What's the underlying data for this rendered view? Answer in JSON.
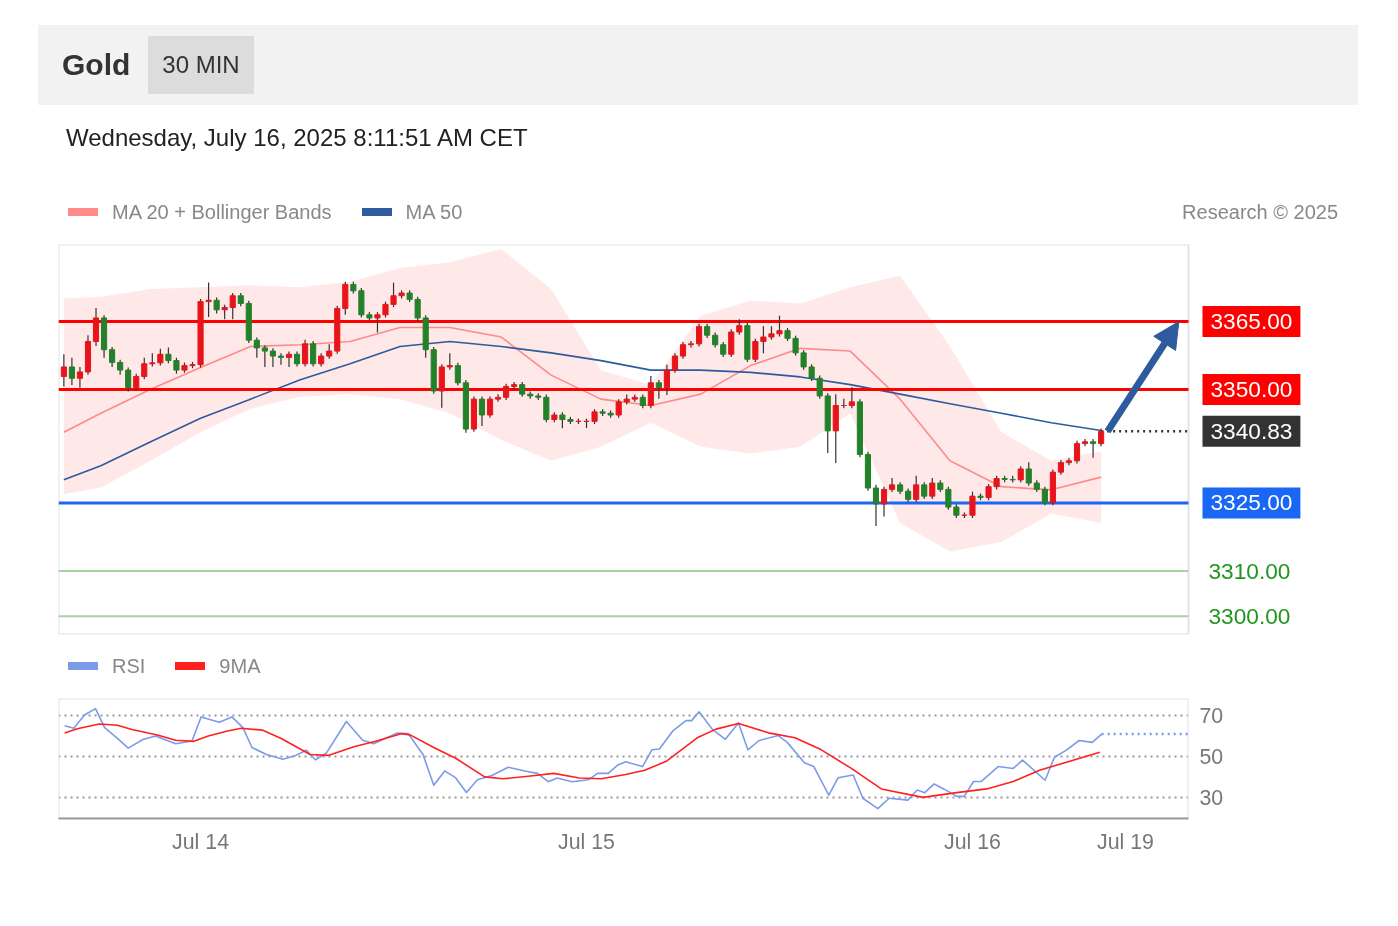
{
  "chart_data": [
    {
      "type": "candlestick",
      "title": "Gold",
      "subtitle": "30 MIN",
      "annotations": [
        "Wednesday, July 16, 2025 8:11:51 AM CET",
        "Research © 2025"
      ],
      "x": [
        "2025-07-13T15:30",
        "2025-07-13T16:00",
        "2025-07-13T16:30",
        "2025-07-13T17:00",
        "2025-07-13T17:30",
        "2025-07-13T18:00",
        "2025-07-13T18:30",
        "2025-07-13T19:00",
        "2025-07-13T19:30",
        "2025-07-13T20:00",
        "2025-07-13T20:30",
        "2025-07-13T21:00",
        "2025-07-13T21:30",
        "2025-07-13T22:00",
        "2025-07-13T22:30",
        "2025-07-13T23:00",
        "2025-07-13T23:30",
        "2025-07-14T00:00",
        "2025-07-14T00:30",
        "2025-07-14T01:00",
        "2025-07-14T01:30",
        "2025-07-14T02:00",
        "2025-07-14T02:30",
        "2025-07-14T03:00",
        "2025-07-14T03:30",
        "2025-07-14T04:00",
        "2025-07-14T04:30",
        "2025-07-14T05:00",
        "2025-07-14T05:30",
        "2025-07-14T06:00",
        "2025-07-14T06:30",
        "2025-07-14T07:00",
        "2025-07-14T07:30",
        "2025-07-14T08:00",
        "2025-07-14T08:30",
        "2025-07-14T09:00",
        "2025-07-14T09:30",
        "2025-07-14T10:00",
        "2025-07-14T10:30",
        "2025-07-14T11:00",
        "2025-07-14T11:30",
        "2025-07-14T12:00",
        "2025-07-14T12:30",
        "2025-07-14T13:00",
        "2025-07-14T13:30",
        "2025-07-14T14:00",
        "2025-07-14T14:30",
        "2025-07-14T15:00",
        "2025-07-14T15:30",
        "2025-07-14T16:00",
        "2025-07-14T16:30",
        "2025-07-14T17:00",
        "2025-07-14T17:30",
        "2025-07-14T18:00",
        "2025-07-14T18:30",
        "2025-07-14T19:00",
        "2025-07-14T19:30",
        "2025-07-14T20:00",
        "2025-07-14T20:30",
        "2025-07-14T21:00",
        "2025-07-14T21:30",
        "2025-07-14T22:00",
        "2025-07-14T22:30",
        "2025-07-14T23:00",
        "2025-07-14T23:30",
        "2025-07-15T00:00",
        "2025-07-15T00:30",
        "2025-07-15T01:00",
        "2025-07-15T01:30",
        "2025-07-15T02:00",
        "2025-07-15T02:30",
        "2025-07-15T03:00",
        "2025-07-15T03:30",
        "2025-07-15T04:00",
        "2025-07-15T04:30",
        "2025-07-15T05:00",
        "2025-07-15T05:30",
        "2025-07-15T06:00",
        "2025-07-15T06:30",
        "2025-07-15T07:00",
        "2025-07-15T07:30",
        "2025-07-15T08:00",
        "2025-07-15T08:30",
        "2025-07-15T09:00",
        "2025-07-15T09:30",
        "2025-07-15T10:00",
        "2025-07-15T10:30",
        "2025-07-15T11:00",
        "2025-07-15T11:30",
        "2025-07-15T12:00",
        "2025-07-15T12:30",
        "2025-07-15T13:00",
        "2025-07-15T13:30",
        "2025-07-15T14:00",
        "2025-07-15T14:30",
        "2025-07-15T15:00",
        "2025-07-15T15:30",
        "2025-07-15T16:00",
        "2025-07-15T16:30",
        "2025-07-15T17:00",
        "2025-07-15T17:30",
        "2025-07-15T18:00",
        "2025-07-15T18:30",
        "2025-07-15T19:00",
        "2025-07-15T19:30",
        "2025-07-15T20:00",
        "2025-07-15T20:30",
        "2025-07-15T21:00",
        "2025-07-15T21:30",
        "2025-07-15T22:00",
        "2025-07-15T22:30",
        "2025-07-15T23:00",
        "2025-07-15T23:30",
        "2025-07-16T00:00",
        "2025-07-16T00:30",
        "2025-07-16T01:00",
        "2025-07-16T01:30",
        "2025-07-16T02:00",
        "2025-07-16T02:30",
        "2025-07-16T03:00",
        "2025-07-16T03:30",
        "2025-07-16T04:00",
        "2025-07-16T04:30",
        "2025-07-16T05:00",
        "2025-07-16T05:30",
        "2025-07-16T06:00",
        "2025-07-16T06:30",
        "2025-07-16T07:00",
        "2025-07-16T07:30",
        "2025-07-16T08:00"
      ],
      "ohlc": [
        [
          3352.9,
          3357.8,
          3350.7,
          3355.0
        ],
        [
          3355.0,
          3357.0,
          3351.0,
          3352.5
        ],
        [
          3352.5,
          3355.0,
          3350.4,
          3353.9
        ],
        [
          3353.9,
          3362.0,
          3353.3,
          3360.6
        ],
        [
          3360.6,
          3368.0,
          3359.6,
          3365.8
        ],
        [
          3365.8,
          3366.4,
          3357.0,
          3358.8
        ],
        [
          3358.8,
          3359.4,
          3355.0,
          3356.0
        ],
        [
          3356.0,
          3356.6,
          3353.3,
          3354.3
        ],
        [
          3354.3,
          3354.9,
          3349.6,
          3350.4
        ],
        [
          3350.4,
          3353.5,
          3349.8,
          3352.9
        ],
        [
          3352.9,
          3357.0,
          3352.3,
          3355.7
        ],
        [
          3355.7,
          3358.0,
          3355.1,
          3355.9
        ],
        [
          3355.9,
          3359.0,
          3355.3,
          3357.8
        ],
        [
          3357.8,
          3359.3,
          3355.8,
          3356.4
        ],
        [
          3356.4,
          3357.0,
          3353.5,
          3354.3
        ],
        [
          3354.3,
          3356.0,
          3353.7,
          3355.3
        ],
        [
          3355.3,
          3356.1,
          3354.7,
          3355.5
        ],
        [
          3355.5,
          3370.0,
          3354.9,
          3369.4
        ],
        [
          3369.4,
          3373.6,
          3366.0,
          3369.7
        ],
        [
          3369.7,
          3370.3,
          3366.8,
          3367.6
        ],
        [
          3367.6,
          3368.7,
          3365.5,
          3368.1
        ],
        [
          3368.1,
          3371.3,
          3365.5,
          3370.7
        ],
        [
          3370.7,
          3371.3,
          3368.4,
          3369.0
        ],
        [
          3369.0,
          3369.6,
          3360.3,
          3360.9
        ],
        [
          3360.9,
          3361.5,
          3357.0,
          3359.2
        ],
        [
          3359.2,
          3359.8,
          3355.0,
          3358.5
        ],
        [
          3358.5,
          3359.1,
          3355.0,
          3357.4
        ],
        [
          3357.4,
          3358.0,
          3355.5,
          3357.1
        ],
        [
          3357.1,
          3358.4,
          3355.0,
          3357.8
        ],
        [
          3357.8,
          3358.4,
          3355.1,
          3355.7
        ],
        [
          3355.7,
          3361.0,
          3355.1,
          3360.1
        ],
        [
          3360.1,
          3360.7,
          3355.1,
          3355.7
        ],
        [
          3355.7,
          3358.0,
          3355.1,
          3357.4
        ],
        [
          3357.4,
          3360.0,
          3356.8,
          3358.5
        ],
        [
          3358.5,
          3368.5,
          3357.9,
          3367.9
        ],
        [
          3367.9,
          3373.8,
          3366.5,
          3373.2
        ],
        [
          3373.2,
          3373.8,
          3371.2,
          3371.8
        ],
        [
          3371.8,
          3372.4,
          3365.9,
          3366.5
        ],
        [
          3366.5,
          3367.1,
          3365.2,
          3365.8
        ],
        [
          3365.8,
          3367.1,
          3362.6,
          3366.5
        ],
        [
          3366.5,
          3369.4,
          3365.9,
          3368.8
        ],
        [
          3368.8,
          3373.6,
          3368.2,
          3370.7
        ],
        [
          3370.7,
          3371.9,
          3370.1,
          3371.3
        ],
        [
          3371.3,
          3371.9,
          3369.3,
          3369.9
        ],
        [
          3369.9,
          3370.5,
          3365.2,
          3365.8
        ],
        [
          3365.8,
          3366.4,
          3357.0,
          3358.8
        ],
        [
          3358.8,
          3359.4,
          3349.1,
          3349.7
        ],
        [
          3349.7,
          3355.6,
          3346.0,
          3355.0
        ],
        [
          3355.0,
          3358.0,
          3354.4,
          3355.3
        ],
        [
          3355.3,
          3355.9,
          3350.9,
          3351.5
        ],
        [
          3351.5,
          3352.1,
          3340.5,
          3341.3
        ],
        [
          3341.3,
          3348.5,
          3340.7,
          3347.9
        ],
        [
          3347.9,
          3348.5,
          3342.0,
          3344.4
        ],
        [
          3344.4,
          3348.5,
          3343.8,
          3347.9
        ],
        [
          3347.9,
          3349.0,
          3347.3,
          3348.3
        ],
        [
          3348.3,
          3351.3,
          3347.7,
          3350.7
        ],
        [
          3350.7,
          3351.7,
          3350.1,
          3351.1
        ],
        [
          3351.1,
          3351.7,
          3348.4,
          3349.0
        ],
        [
          3349.0,
          3349.6,
          3348.0,
          3348.6
        ],
        [
          3348.6,
          3349.2,
          3347.7,
          3348.3
        ],
        [
          3348.3,
          3348.9,
          3342.8,
          3343.4
        ],
        [
          3343.4,
          3345.0,
          3342.8,
          3344.4
        ],
        [
          3344.4,
          3345.0,
          3341.5,
          3343.4
        ],
        [
          3343.4,
          3344.0,
          3342.4,
          3343.0
        ],
        [
          3343.0,
          3343.6,
          3342.4,
          3343.0
        ],
        [
          3343.0,
          3343.6,
          3341.5,
          3343.0
        ],
        [
          3343.0,
          3345.7,
          3342.4,
          3345.1
        ],
        [
          3345.1,
          3345.7,
          3344.2,
          3344.8
        ],
        [
          3344.8,
          3345.4,
          3343.8,
          3344.4
        ],
        [
          3344.4,
          3347.9,
          3343.8,
          3347.3
        ],
        [
          3347.3,
          3348.9,
          3346.7,
          3347.9
        ],
        [
          3347.9,
          3348.9,
          3347.3,
          3348.3
        ],
        [
          3348.3,
          3348.9,
          3345.9,
          3346.5
        ],
        [
          3346.5,
          3353.0,
          3345.9,
          3351.5
        ],
        [
          3351.5,
          3352.1,
          3348.0,
          3350.4
        ],
        [
          3350.4,
          3355.5,
          3348.8,
          3354.3
        ],
        [
          3354.3,
          3358.0,
          3353.7,
          3357.4
        ],
        [
          3357.4,
          3360.5,
          3356.8,
          3359.9
        ],
        [
          3359.9,
          3360.7,
          3359.3,
          3360.1
        ],
        [
          3360.1,
          3364.5,
          3359.5,
          3363.9
        ],
        [
          3363.9,
          3364.5,
          3361.4,
          3362.0
        ],
        [
          3362.0,
          3362.6,
          3359.3,
          3359.9
        ],
        [
          3359.9,
          3360.5,
          3357.2,
          3357.8
        ],
        [
          3357.8,
          3363.3,
          3357.2,
          3362.7
        ],
        [
          3362.7,
          3365.5,
          3362.1,
          3364.1
        ],
        [
          3364.1,
          3364.7,
          3356.1,
          3356.7
        ],
        [
          3356.7,
          3361.2,
          3356.1,
          3360.6
        ],
        [
          3360.6,
          3364.0,
          3358.0,
          3361.6
        ],
        [
          3361.6,
          3364.0,
          3361.0,
          3362.3
        ],
        [
          3362.3,
          3366.3,
          3361.7,
          3363.0
        ],
        [
          3363.0,
          3363.6,
          3360.7,
          3361.3
        ],
        [
          3361.3,
          3361.9,
          3357.5,
          3358.1
        ],
        [
          3358.1,
          3358.7,
          3354.4,
          3355.0
        ],
        [
          3355.0,
          3355.6,
          3351.9,
          3352.5
        ],
        [
          3352.5,
          3353.1,
          3348.0,
          3348.6
        ],
        [
          3348.6,
          3349.2,
          3336.0,
          3340.9
        ],
        [
          3340.9,
          3349.0,
          3333.8,
          3346.5
        ],
        [
          3346.5,
          3348.0,
          3345.9,
          3346.5
        ],
        [
          3346.5,
          3350.5,
          3345.9,
          3347.3
        ],
        [
          3347.3,
          3347.9,
          3335.1,
          3335.7
        ],
        [
          3335.7,
          3336.3,
          3327.7,
          3328.3
        ],
        [
          3328.3,
          3329.0,
          3319.9,
          3324.8
        ],
        [
          3324.8,
          3328.6,
          3322.0,
          3328.0
        ],
        [
          3328.0,
          3330.5,
          3327.4,
          3329.0
        ],
        [
          3329.0,
          3329.6,
          3327.0,
          3327.6
        ],
        [
          3327.6,
          3328.2,
          3325.2,
          3325.8
        ],
        [
          3325.8,
          3331.0,
          3325.2,
          3329.0
        ],
        [
          3329.0,
          3329.6,
          3325.9,
          3326.5
        ],
        [
          3326.5,
          3330.5,
          3325.9,
          3329.4
        ],
        [
          3329.4,
          3330.0,
          3327.4,
          3328.0
        ],
        [
          3328.0,
          3328.6,
          3323.5,
          3324.1
        ],
        [
          3324.1,
          3324.7,
          3321.7,
          3322.3
        ],
        [
          3322.3,
          3322.9,
          3321.7,
          3322.3
        ],
        [
          3322.3,
          3327.5,
          3321.7,
          3326.5
        ],
        [
          3326.5,
          3327.1,
          3325.6,
          3326.2
        ],
        [
          3326.2,
          3329.2,
          3325.6,
          3328.6
        ],
        [
          3328.6,
          3331.0,
          3328.0,
          3330.4
        ],
        [
          3330.4,
          3331.0,
          3329.6,
          3330.2
        ],
        [
          3330.2,
          3331.0,
          3329.5,
          3330.1
        ],
        [
          3330.1,
          3333.1,
          3329.5,
          3332.5
        ],
        [
          3332.5,
          3334.0,
          3328.8,
          3329.4
        ],
        [
          3329.4,
          3330.0,
          3327.4,
          3328.0
        ],
        [
          3328.0,
          3328.6,
          3324.5,
          3325.1
        ],
        [
          3325.1,
          3332.4,
          3324.5,
          3331.8
        ],
        [
          3331.8,
          3334.5,
          3331.2,
          3333.9
        ],
        [
          3333.9,
          3334.9,
          3333.3,
          3334.3
        ],
        [
          3334.3,
          3338.7,
          3333.7,
          3338.1
        ],
        [
          3338.1,
          3339.1,
          3337.5,
          3338.5
        ],
        [
          3338.5,
          3339.1,
          3335.0,
          3338.1
        ],
        [
          3338.1,
          3341.4,
          3337.5,
          3340.8
        ]
      ],
      "series": [
        {
          "name": "MA 20 + Bollinger Bands",
          "type": "line",
          "color": "#ff8a8a",
          "x": [
            "2025-07-13T15:30",
            "2025-07-13T17:48",
            "2025-07-13T20:54",
            "2025-07-14T00:00",
            "2025-07-14T03:06",
            "2025-07-14T06:12",
            "2025-07-14T09:18",
            "2025-07-14T12:24",
            "2025-07-14T15:30",
            "2025-07-14T18:42",
            "2025-07-14T21:48",
            "2025-07-15T00:54",
            "2025-07-15T04:00",
            "2025-07-15T07:06",
            "2025-07-15T10:12",
            "2025-07-15T13:18",
            "2025-07-15T16:24",
            "2025-07-15T19:30",
            "2025-07-15T22:36",
            "2025-07-16T01:48",
            "2025-07-16T04:54",
            "2025-07-16T08:00"
          ],
          "values": [
            3340.6,
            3344.8,
            3350.1,
            3354.9,
            3359.5,
            3359.9,
            3360.6,
            3363.7,
            3363.7,
            3361.6,
            3353.2,
            3347.9,
            3346.5,
            3349.0,
            3355.3,
            3359.1,
            3358.5,
            3347.9,
            3334.3,
            3328.6,
            3327.9,
            3330.7
          ],
          "upper": [
            3370.1,
            3370.5,
            3372.2,
            3372.6,
            3373.0,
            3372.6,
            3373.8,
            3376.8,
            3378.1,
            3381.0,
            3372.2,
            3354.2,
            3351.1,
            3366.3,
            3369.6,
            3369.0,
            3372.6,
            3375.1,
            3359.5,
            3340.6,
            3334.3,
            3336.4
          ],
          "lower": [
            3326.9,
            3328.4,
            3334.3,
            3340.6,
            3345.8,
            3348.4,
            3349.0,
            3347.9,
            3344.8,
            3338.9,
            3334.3,
            3337.4,
            3342.7,
            3337.4,
            3335.9,
            3337.4,
            3344.8,
            3320.6,
            3314.3,
            3316.4,
            3322.7,
            3320.6
          ]
        },
        {
          "name": "MA 50",
          "type": "line",
          "color": "#2d5b9e",
          "x": [
            "2025-07-13T15:30",
            "2025-07-13T17:48",
            "2025-07-13T20:54",
            "2025-07-14T00:00",
            "2025-07-14T03:06",
            "2025-07-14T06:12",
            "2025-07-14T09:18",
            "2025-07-14T12:24",
            "2025-07-14T15:30",
            "2025-07-14T18:42",
            "2025-07-14T21:48",
            "2025-07-15T00:54",
            "2025-07-15T04:00",
            "2025-07-15T07:06",
            "2025-07-15T10:12",
            "2025-07-15T13:18",
            "2025-07-15T16:24",
            "2025-07-15T19:30",
            "2025-07-15T22:36",
            "2025-07-16T01:48",
            "2025-07-16T04:54",
            "2025-07-16T08:00"
          ],
          "values": [
            3330.1,
            3333.2,
            3338.5,
            3343.7,
            3347.9,
            3352.2,
            3355.7,
            3359.5,
            3360.6,
            3359.5,
            3358.1,
            3356.4,
            3354.3,
            3354.3,
            3353.8,
            3352.8,
            3351.1,
            3349.0,
            3346.9,
            3344.8,
            3342.7,
            3341.0
          ]
        },
        {
          "type": "line",
          "color": "#333333",
          "line_style": "dotted",
          "x": [
            "2025-07-16T08:00",
            "2025-07-16T13:26"
          ],
          "values": [
            3340.83,
            3340.83
          ]
        }
      ],
      "xlim": [
        "2025-07-13T15:10",
        "2025-07-16T13:26"
      ],
      "ylim": [
        3296,
        3382
      ],
      "tick_labels": "y",
      "legend": "top left",
      "yticks": [
        {
          "value": 3365,
          "label": "3365.00"
        },
        {
          "value": 3350,
          "label": "3350.00"
        },
        {
          "value": 3340.83,
          "label": "3340.83"
        },
        {
          "value": 3325,
          "label": "3325.00"
        },
        {
          "value": 3310,
          "label": "3310.00"
        },
        {
          "value": 3300,
          "label": "3300.00"
        }
      ],
      "ref_lines": [
        {
          "axis": "y",
          "value": 3365,
          "color": "#ff0000"
        },
        {
          "axis": "y",
          "value": 3350,
          "color": "#ff0000"
        },
        {
          "axis": "y",
          "value": 3325,
          "color": "#1a66f5"
        },
        {
          "axis": "y",
          "value": 3310,
          "color": "#a4d59e"
        },
        {
          "axis": "y",
          "value": 3300,
          "color": "#a4d59e"
        }
      ]
    },
    {
      "type": "line",
      "xlim": [
        "2025-07-13T15:10",
        "2025-07-16T13:26"
      ],
      "ylim": [
        20,
        78
      ],
      "yticks": [
        30,
        50,
        70
      ],
      "xticks": [
        {
          "value": "2025-07-14",
          "label": "Jul 14"
        },
        {
          "value": "2025-07-15",
          "label": "Jul 15"
        },
        {
          "value": "2025-07-16",
          "label": "Jul 16"
        }
      ],
      "annotations": [
        "Jul 19"
      ],
      "grid": "y",
      "legend": "top left",
      "series": [
        {
          "name": "RSI",
          "color": "#7b9be8",
          "x": [
            "2025-07-13T15:33",
            "2025-07-13T16:07",
            "2025-07-13T16:47",
            "2025-07-13T17:28",
            "2025-07-13T18:02",
            "2025-07-13T18:50",
            "2025-07-13T19:30",
            "2025-07-13T20:25",
            "2025-07-13T21:12",
            "2025-07-13T22:27",
            "2025-07-13T23:28",
            "2025-07-14T00:02",
            "2025-07-14T01:10",
            "2025-07-14T01:57",
            "2025-07-14T02:38",
            "2025-07-14T03:12",
            "2025-07-14T04:06",
            "2025-07-14T05:07",
            "2025-07-14T05:55",
            "2025-07-14T06:35",
            "2025-07-14T07:09",
            "2025-07-14T07:50",
            "2025-07-14T09:04",
            "2025-07-14T10:05",
            "2025-07-14T10:46",
            "2025-07-14T12:14",
            "2025-07-14T12:55",
            "2025-07-14T13:50",
            "2025-07-14T14:30",
            "2025-07-14T15:11",
            "2025-07-14T15:52",
            "2025-07-14T16:32",
            "2025-07-14T17:13",
            "2025-07-14T18:07",
            "2025-07-14T19:08",
            "2025-07-14T20:10",
            "2025-07-14T20:57",
            "2025-07-14T21:37",
            "2025-07-14T22:11",
            "2025-07-14T23:06",
            "2025-07-15T00:07",
            "2025-07-15T00:41",
            "2025-07-15T01:21",
            "2025-07-15T01:55",
            "2025-07-15T02:26",
            "2025-07-15T03:29",
            "2025-07-15T04:04",
            "2025-07-15T04:32",
            "2025-07-15T05:22",
            "2025-07-15T06:11",
            "2025-07-15T06:32",
            "2025-07-15T07:00",
            "2025-07-15T07:49",
            "2025-07-15T08:38",
            "2025-07-15T09:27",
            "2025-07-15T10:02",
            "2025-07-15T10:44",
            "2025-07-15T11:55",
            "2025-07-15T12:29",
            "2025-07-15T13:33",
            "2025-07-15T14:08",
            "2025-07-15T15:04",
            "2025-07-15T15:39",
            "2025-07-15T16:35",
            "2025-07-15T17:11",
            "2025-07-15T18:07",
            "2025-07-15T18:49",
            "2025-07-15T19:59",
            "2025-07-15T20:34",
            "2025-07-15T21:02",
            "2025-07-15T21:37",
            "2025-07-15T22:13",
            "2025-07-15T23:01",
            "2025-07-15T23:29",
            "2025-07-16T00:04",
            "2025-07-16T00:33",
            "2025-07-16T01:36",
            "2025-07-16T02:32",
            "2025-07-16T03:07",
            "2025-07-16T04:31",
            "2025-07-16T05:06",
            "2025-07-16T05:49",
            "2025-07-16T06:38",
            "2025-07-16T07:27",
            "2025-07-16T08:02"
          ],
          "values": [
            64.8,
            63.6,
            70.0,
            73.1,
            63.9,
            58.7,
            54.0,
            58.2,
            59.9,
            56.1,
            57.5,
            69.1,
            66.5,
            69.1,
            63.9,
            54.3,
            50.9,
            48.6,
            50.5,
            53.0,
            48.3,
            51.7,
            66.9,
            57.8,
            56.1,
            61.3,
            61.0,
            50.9,
            36.1,
            43.0,
            39.6,
            32.6,
            38.7,
            40.8,
            44.8,
            43.0,
            41.8,
            37.8,
            39.6,
            37.8,
            38.7,
            41.8,
            41.8,
            45.7,
            47.4,
            45.1,
            53.2,
            53.6,
            62.3,
            67.3,
            67.3,
            71.6,
            63.2,
            58.3,
            66.2,
            53.2,
            57.7,
            60.1,
            56.8,
            46.9,
            45.1,
            31.3,
            39.7,
            41.0,
            29.8,
            24.8,
            29.8,
            28.9,
            33.8,
            32.5,
            36.7,
            34.3,
            30.7,
            30.7,
            37.9,
            37.9,
            45.1,
            44.2,
            48.2,
            38.5,
            49.6,
            52.9,
            57.7,
            56.8,
            60.8
          ]
        },
        {
          "name": "9MA",
          "color": "#ff2020",
          "x": [
            "2025-07-13T15:33",
            "2025-07-13T16:20",
            "2025-07-13T17:42",
            "2025-07-13T18:50",
            "2025-07-13T19:44",
            "2025-07-13T21:19",
            "2025-07-13T22:27",
            "2025-07-13T23:35",
            "2025-07-14T00:29",
            "2025-07-14T01:37",
            "2025-07-14T02:31",
            "2025-07-14T03:52",
            "2025-07-14T05:01",
            "2025-07-14T06:49",
            "2025-07-14T07:56",
            "2025-07-14T09:32",
            "2025-07-14T10:53",
            "2025-07-14T12:28",
            "2025-07-14T13:02",
            "2025-07-14T14:30",
            "2025-07-14T15:52",
            "2025-07-14T17:40",
            "2025-07-14T18:48",
            "2025-07-14T20:23",
            "2025-07-14T21:58",
            "2025-07-14T23:33",
            "2025-07-15T00:55",
            "2025-07-15T02:26",
            "2025-07-15T03:37",
            "2025-07-15T05:00",
            "2025-07-15T06:53",
            "2025-07-15T08:03",
            "2025-07-15T09:27",
            "2025-07-15T11:19",
            "2025-07-15T12:58",
            "2025-07-15T14:36",
            "2025-07-15T16:28",
            "2025-07-15T18:20",
            "2025-07-15T20:55",
            "2025-07-15T23:01",
            "2025-07-16T00:53",
            "2025-07-16T02:32",
            "2025-07-16T04:10",
            "2025-07-16T07:55"
          ],
          "values": [
            61.3,
            63.4,
            65.7,
            65.1,
            63.0,
            60.4,
            57.8,
            57.3,
            59.9,
            62.2,
            63.6,
            62.7,
            58.7,
            50.9,
            50.5,
            54.7,
            57.3,
            61.0,
            60.4,
            54.3,
            49.1,
            40.1,
            39.2,
            40.4,
            41.8,
            39.6,
            39.2,
            41.3,
            43.3,
            47.8,
            59.0,
            63.2,
            65.9,
            61.4,
            59.0,
            53.2,
            44.2,
            34.3,
            30.2,
            32.5,
            34.3,
            37.9,
            43.3,
            52.0
          ]
        },
        {
          "color": "#7b9be8",
          "line_style": "dotted",
          "x": [
            "2025-07-16T08:02",
            "2025-07-16T13:26"
          ],
          "values": [
            60.8,
            60.8
          ]
        }
      ]
    }
  ]
}
